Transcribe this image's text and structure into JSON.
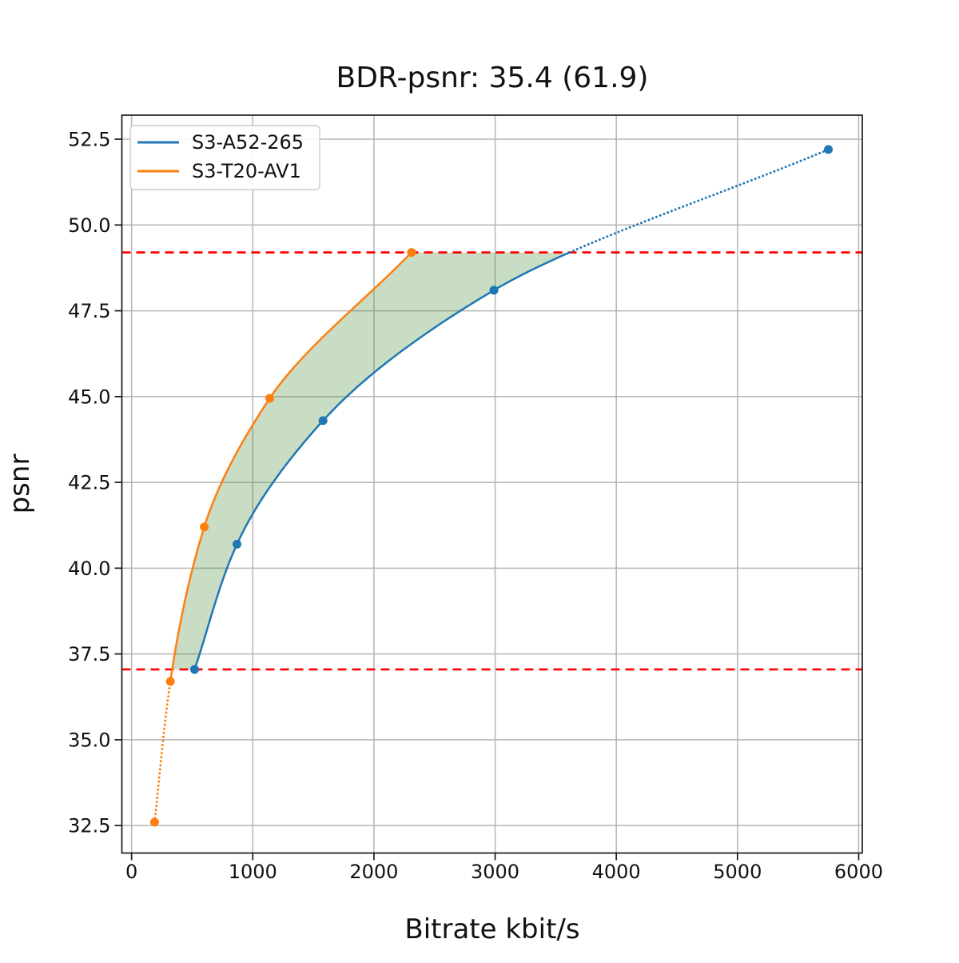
{
  "chart_data": {
    "type": "line",
    "title": "BDR-psnr: 35.4 (61.9)",
    "xlabel": "Bitrate kbit/s",
    "ylabel": "psnr",
    "xlim": [
      -80,
      6030
    ],
    "ylim": [
      31.7,
      53.2
    ],
    "xticks": [
      0,
      1000,
      2000,
      3000,
      4000,
      5000,
      6000
    ],
    "yticks": [
      32.5,
      35.0,
      37.5,
      40.0,
      42.5,
      45.0,
      47.5,
      50.0,
      52.5
    ],
    "grid": true,
    "grid_color": "#b5b5b5",
    "legend_position": "upper left",
    "series": [
      {
        "name": "S3-A52-265",
        "color": "#1f77b4",
        "x": [
          520,
          870,
          1580,
          2990,
          5750
        ],
        "y": [
          37.05,
          40.7,
          44.3,
          48.1,
          52.2
        ],
        "solid_y_range": [
          37.05,
          49.2
        ]
      },
      {
        "name": "S3-T20-AV1",
        "color": "#ff7f0e",
        "x": [
          190,
          320,
          600,
          1140,
          2310
        ],
        "y": [
          32.6,
          36.7,
          41.2,
          44.95,
          49.2
        ],
        "solid_y_range": [
          36.7,
          49.2
        ]
      }
    ],
    "hlines": {
      "values": [
        37.05,
        49.2
      ],
      "color": "#ff0000",
      "style": "dashed"
    },
    "bd_shade": {
      "color": "#4c8c3c",
      "opacity": 0.3,
      "y_range": [
        37.05,
        49.2
      ]
    }
  }
}
